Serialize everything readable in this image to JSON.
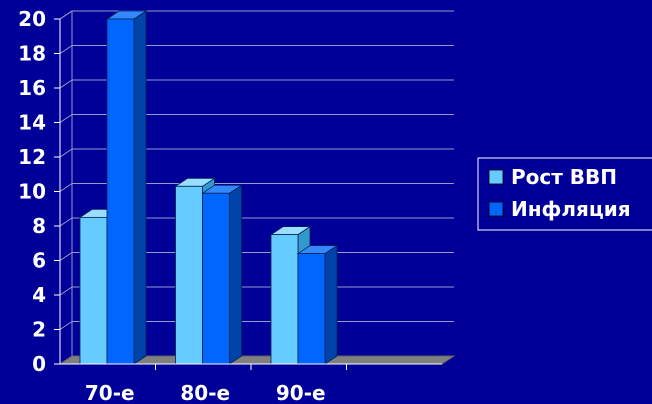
{
  "chart_data": {
    "type": "bar",
    "categories": [
      "70-е",
      "80-е",
      "90-е"
    ],
    "series": [
      {
        "name": "Рост ВВП",
        "values": [
          8.5,
          10.3,
          7.5
        ]
      },
      {
        "name": "Инфляция",
        "values": [
          20,
          9.9,
          6.4
        ]
      }
    ],
    "ylim": [
      0,
      20
    ],
    "yticks": [
      "0",
      "2",
      "4",
      "6",
      "8",
      "10",
      "12",
      "14",
      "16",
      "18",
      "20"
    ],
    "grid": true,
    "legend": "right",
    "colors": {
      "background": "#000099",
      "series_front": [
        "#66CCFF",
        "#0066FF"
      ],
      "series_side": [
        "#3399CC",
        "#0044AA"
      ],
      "series_top": [
        "#99DDFF",
        "#3388FF"
      ],
      "floor": "#808080",
      "grid": "#9999CC"
    }
  }
}
